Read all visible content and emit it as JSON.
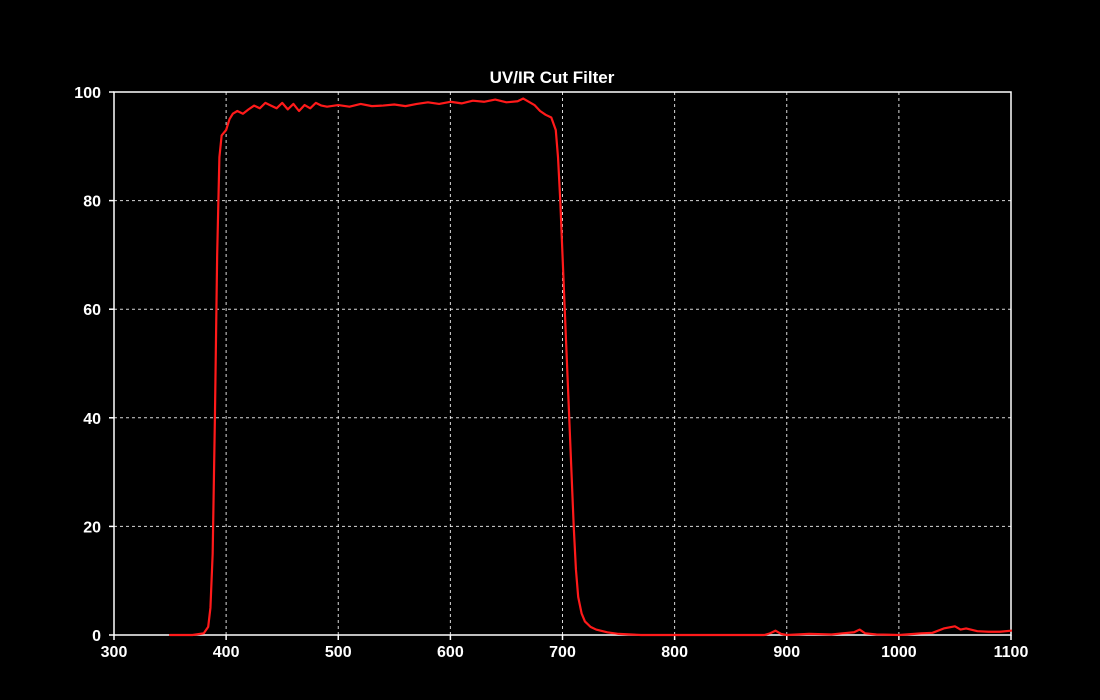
{
  "chart_data": {
    "type": "line",
    "title": "UV/IR Cut Filter",
    "xlabel": "",
    "ylabel": "",
    "xlim": [
      300,
      1100
    ],
    "ylim": [
      0,
      100
    ],
    "x_ticks": [
      300,
      400,
      500,
      600,
      700,
      800,
      900,
      1000,
      1100
    ],
    "y_ticks": [
      0,
      20,
      40,
      60,
      80,
      100
    ],
    "grid": true,
    "series": [
      {
        "color": "#ff1a1a",
        "points": [
          [
            350,
            0
          ],
          [
            370,
            0
          ],
          [
            380,
            0.3
          ],
          [
            384,
            1.5
          ],
          [
            386,
            5
          ],
          [
            388,
            15
          ],
          [
            390,
            40
          ],
          [
            392,
            70
          ],
          [
            394,
            88
          ],
          [
            396,
            92
          ],
          [
            400,
            93
          ],
          [
            403,
            95
          ],
          [
            406,
            96
          ],
          [
            410,
            96.5
          ],
          [
            415,
            96
          ],
          [
            420,
            96.8
          ],
          [
            425,
            97.5
          ],
          [
            430,
            97
          ],
          [
            435,
            98
          ],
          [
            440,
            97.5
          ],
          [
            445,
            97
          ],
          [
            450,
            98
          ],
          [
            455,
            96.8
          ],
          [
            460,
            97.8
          ],
          [
            465,
            96.5
          ],
          [
            470,
            97.6
          ],
          [
            475,
            97
          ],
          [
            480,
            98
          ],
          [
            485,
            97.5
          ],
          [
            490,
            97.3
          ],
          [
            500,
            97.6
          ],
          [
            510,
            97.3
          ],
          [
            520,
            97.8
          ],
          [
            530,
            97.4
          ],
          [
            540,
            97.5
          ],
          [
            550,
            97.7
          ],
          [
            560,
            97.4
          ],
          [
            570,
            97.8
          ],
          [
            580,
            98.1
          ],
          [
            590,
            97.8
          ],
          [
            600,
            98.2
          ],
          [
            610,
            97.9
          ],
          [
            620,
            98.4
          ],
          [
            630,
            98.2
          ],
          [
            640,
            98.6
          ],
          [
            650,
            98.1
          ],
          [
            660,
            98.3
          ],
          [
            665,
            98.8
          ],
          [
            670,
            98.2
          ],
          [
            675,
            97.6
          ],
          [
            680,
            96.5
          ],
          [
            685,
            95.8
          ],
          [
            690,
            95.3
          ],
          [
            694,
            93
          ],
          [
            696,
            88
          ],
          [
            698,
            80
          ],
          [
            700,
            70
          ],
          [
            702,
            60
          ],
          [
            704,
            50
          ],
          [
            706,
            40
          ],
          [
            708,
            30
          ],
          [
            710,
            20
          ],
          [
            712,
            12
          ],
          [
            714,
            7
          ],
          [
            717,
            4
          ],
          [
            720,
            2.5
          ],
          [
            725,
            1.5
          ],
          [
            730,
            1
          ],
          [
            740,
            0.5
          ],
          [
            750,
            0.2
          ],
          [
            770,
            0
          ],
          [
            800,
            0
          ],
          [
            850,
            0
          ],
          [
            880,
            0
          ],
          [
            885,
            0.3
          ],
          [
            890,
            0.8
          ],
          [
            895,
            0.2
          ],
          [
            900,
            0
          ],
          [
            920,
            0.2
          ],
          [
            940,
            0.1
          ],
          [
            960,
            0.5
          ],
          [
            965,
            1
          ],
          [
            970,
            0.3
          ],
          [
            980,
            0.1
          ],
          [
            1000,
            0
          ],
          [
            1020,
            0.3
          ],
          [
            1030,
            0.4
          ],
          [
            1040,
            1.2
          ],
          [
            1050,
            1.6
          ],
          [
            1055,
            1
          ],
          [
            1060,
            1.2
          ],
          [
            1070,
            0.7
          ],
          [
            1080,
            0.6
          ],
          [
            1090,
            0.6
          ],
          [
            1100,
            0.8
          ]
        ]
      }
    ]
  }
}
